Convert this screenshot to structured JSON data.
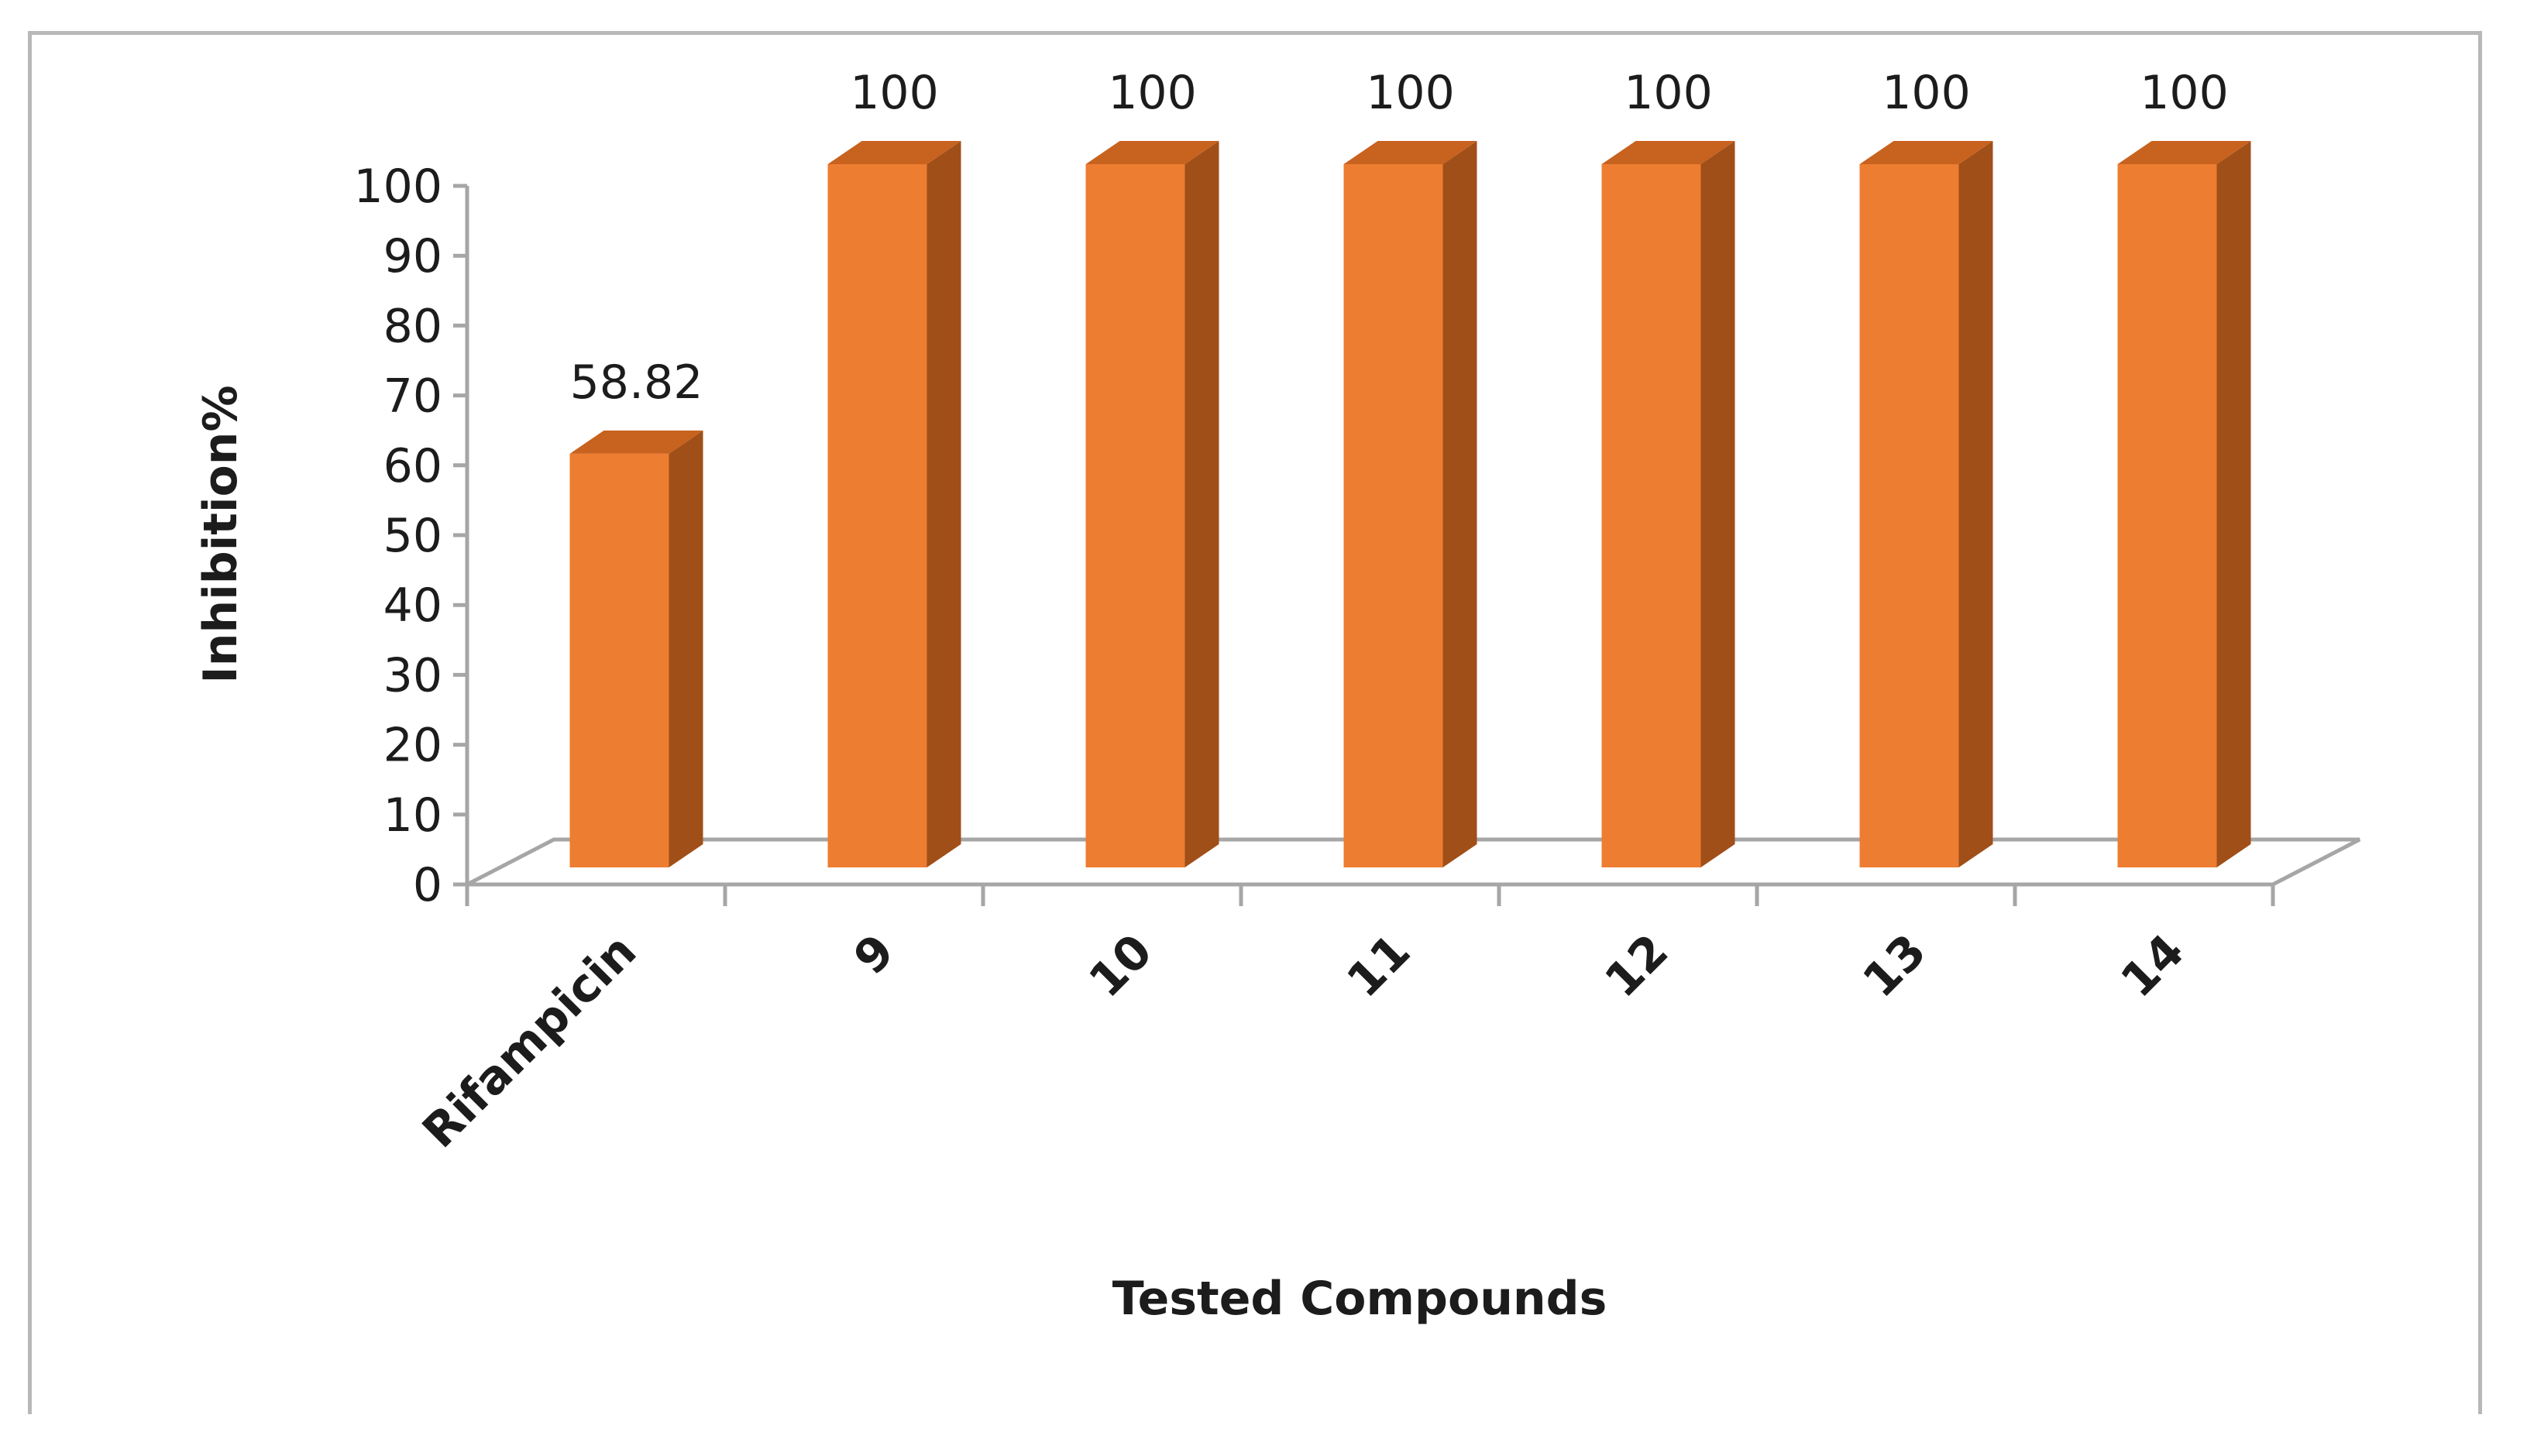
{
  "chart_data": {
    "type": "bar",
    "style": "3d-column",
    "categories": [
      "Rifampicin",
      "9",
      "10",
      "11",
      "12",
      "13",
      "14"
    ],
    "values": [
      58.82,
      100,
      100,
      100,
      100,
      100,
      100
    ],
    "data_labels": [
      "58.82",
      "100",
      "100",
      "100",
      "100",
      "100",
      "100"
    ],
    "xlabel": "Tested Compounds",
    "ylabel": "Inhibition%",
    "ylim": [
      0,
      100
    ],
    "yticks": [
      0,
      10,
      20,
      30,
      40,
      50,
      60,
      70,
      80,
      90,
      100
    ],
    "grid": false,
    "legend": "none",
    "colors": {
      "bar_front": "#ED7D31",
      "bar_side": "#A04F18",
      "bar_top": "#C8621F",
      "axis": "#a6a6a6",
      "text": "#1c1c1c"
    }
  }
}
